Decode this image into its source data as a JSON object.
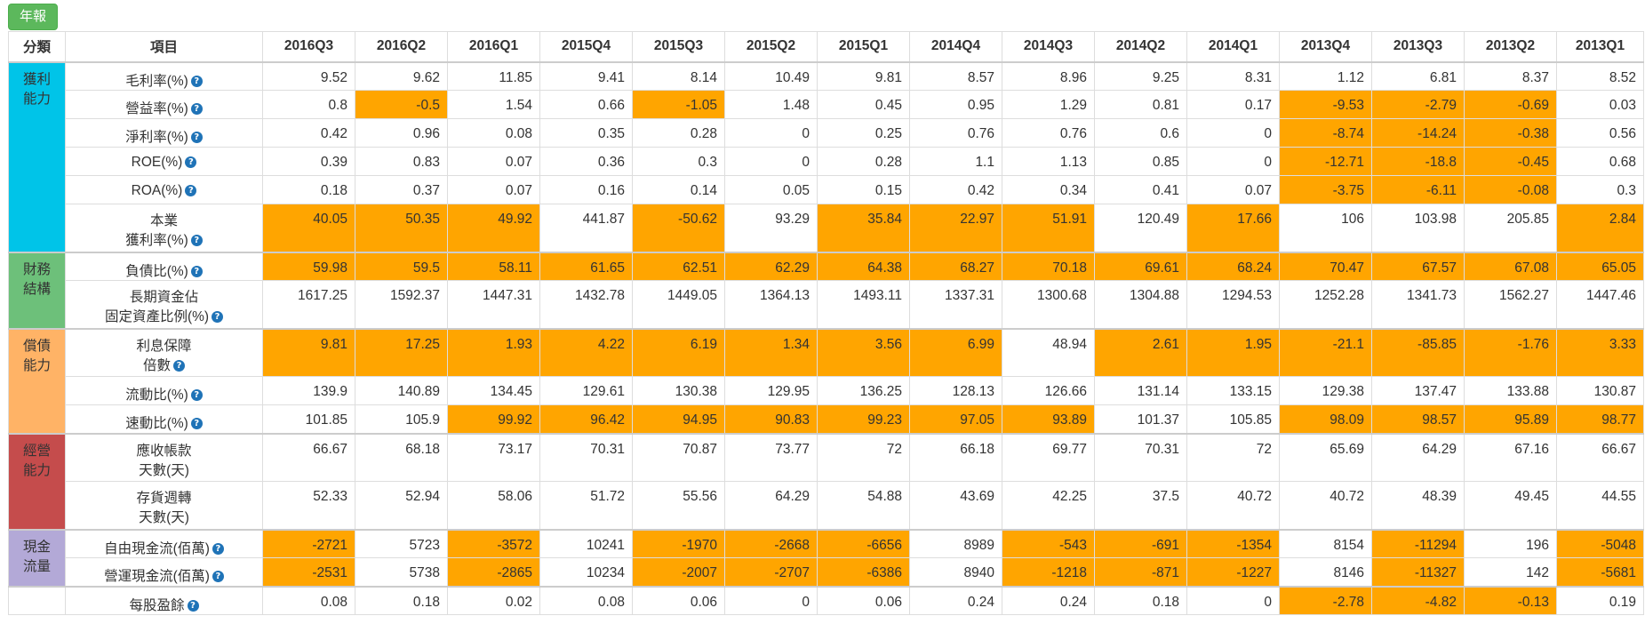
{
  "toolbar": {
    "annual_label": "年報"
  },
  "header": {
    "category_label": "分類",
    "item_label": "項目",
    "quarters": [
      "2016Q3",
      "2016Q2",
      "2016Q1",
      "2015Q4",
      "2015Q3",
      "2015Q2",
      "2015Q1",
      "2014Q4",
      "2014Q3",
      "2014Q2",
      "2014Q1",
      "2013Q4",
      "2013Q3",
      "2013Q2",
      "2013Q1"
    ]
  },
  "colors": {
    "highlight": "#ffa500",
    "cat_profit": "#00c4e8",
    "cat_finance": "#6dc07a",
    "cat_debt": "#ffb366",
    "cat_operation": "#c54c4c",
    "cat_cash": "#b3a9d7",
    "button": "#5cb85c"
  },
  "categories": [
    {
      "name": "獲利能力",
      "lines": [
        "獲利",
        "能力"
      ],
      "color": "#00c4e8",
      "rows": 6
    },
    {
      "name": "財務結構",
      "lines": [
        "財務",
        "結構"
      ],
      "color": "#6dc07a",
      "rows": 2
    },
    {
      "name": "償債能力",
      "lines": [
        "償債",
        "能力"
      ],
      "color": "#ffb366",
      "rows": 3
    },
    {
      "name": "經營能力",
      "lines": [
        "經營",
        "能力"
      ],
      "color": "#c54c4c",
      "rows": 2
    },
    {
      "name": "現金流量",
      "lines": [
        "現金",
        "流量"
      ],
      "color": "#b3a9d7",
      "rows": 2
    },
    {
      "name": "",
      "lines": [
        "",
        ""
      ],
      "color": "#ffffff",
      "rows": 1
    }
  ],
  "rows": [
    {
      "label": [
        "毛利率(%)"
      ],
      "help": true,
      "values": [
        "9.52",
        "9.62",
        "11.85",
        "9.41",
        "8.14",
        "10.49",
        "9.81",
        "8.57",
        "8.96",
        "9.25",
        "8.31",
        "1.12",
        "6.81",
        "8.37",
        "8.52"
      ],
      "highlight": []
    },
    {
      "label": [
        "營益率(%)"
      ],
      "help": true,
      "values": [
        "0.8",
        "-0.5",
        "1.54",
        "0.66",
        "-1.05",
        "1.48",
        "0.45",
        "0.95",
        "1.29",
        "0.81",
        "0.17",
        "-9.53",
        "-2.79",
        "-0.69",
        "0.03"
      ],
      "highlight": [
        1,
        4,
        11,
        12,
        13
      ]
    },
    {
      "label": [
        "淨利率(%)"
      ],
      "help": true,
      "values": [
        "0.42",
        "0.96",
        "0.08",
        "0.35",
        "0.28",
        "0",
        "0.25",
        "0.76",
        "0.76",
        "0.6",
        "0",
        "-8.74",
        "-14.24",
        "-0.38",
        "0.56"
      ],
      "highlight": [
        11,
        12,
        13
      ]
    },
    {
      "label": [
        "ROE(%)"
      ],
      "help": true,
      "values": [
        "0.39",
        "0.83",
        "0.07",
        "0.36",
        "0.3",
        "0",
        "0.28",
        "1.1",
        "1.13",
        "0.85",
        "0",
        "-12.71",
        "-18.8",
        "-0.45",
        "0.68"
      ],
      "highlight": [
        11,
        12,
        13
      ]
    },
    {
      "label": [
        "ROA(%)"
      ],
      "help": true,
      "values": [
        "0.18",
        "0.37",
        "0.07",
        "0.16",
        "0.14",
        "0.05",
        "0.15",
        "0.42",
        "0.34",
        "0.41",
        "0.07",
        "-3.75",
        "-6.11",
        "-0.08",
        "0.3"
      ],
      "highlight": [
        11,
        12,
        13
      ]
    },
    {
      "label": [
        "本業",
        "獲利率(%)"
      ],
      "help": true,
      "values": [
        "40.05",
        "50.35",
        "49.92",
        "441.87",
        "-50.62",
        "93.29",
        "35.84",
        "22.97",
        "51.91",
        "120.49",
        "17.66",
        "106",
        "103.98",
        "205.85",
        "2.84"
      ],
      "highlight": [
        0,
        1,
        2,
        4,
        6,
        7,
        8,
        10,
        14
      ]
    },
    {
      "label": [
        "負債比(%)"
      ],
      "help": true,
      "values": [
        "59.98",
        "59.5",
        "58.11",
        "61.65",
        "62.51",
        "62.29",
        "64.38",
        "68.27",
        "70.18",
        "69.61",
        "68.24",
        "70.47",
        "67.57",
        "67.08",
        "65.05"
      ],
      "highlight": [
        0,
        1,
        2,
        3,
        4,
        5,
        6,
        7,
        8,
        9,
        10,
        11,
        12,
        13,
        14
      ]
    },
    {
      "label": [
        "長期資金佔",
        "固定資產比例(%)"
      ],
      "help": true,
      "values": [
        "1617.25",
        "1592.37",
        "1447.31",
        "1432.78",
        "1449.05",
        "1364.13",
        "1493.11",
        "1337.31",
        "1300.68",
        "1304.88",
        "1294.53",
        "1252.28",
        "1341.73",
        "1562.27",
        "1447.46"
      ],
      "highlight": []
    },
    {
      "label": [
        "利息保障",
        "倍數"
      ],
      "help": true,
      "values": [
        "9.81",
        "17.25",
        "1.93",
        "4.22",
        "6.19",
        "1.34",
        "3.56",
        "6.99",
        "48.94",
        "2.61",
        "1.95",
        "-21.1",
        "-85.85",
        "-1.76",
        "3.33"
      ],
      "highlight": [
        0,
        1,
        2,
        3,
        4,
        5,
        6,
        7,
        9,
        10,
        11,
        12,
        13,
        14
      ]
    },
    {
      "label": [
        "流動比(%)"
      ],
      "help": true,
      "values": [
        "139.9",
        "140.89",
        "134.45",
        "129.61",
        "130.38",
        "129.95",
        "136.25",
        "128.13",
        "126.66",
        "131.14",
        "133.15",
        "129.38",
        "137.47",
        "133.88",
        "130.87"
      ],
      "highlight": []
    },
    {
      "label": [
        "速動比(%)"
      ],
      "help": true,
      "values": [
        "101.85",
        "105.9",
        "99.92",
        "96.42",
        "94.95",
        "90.83",
        "99.23",
        "97.05",
        "93.89",
        "101.37",
        "105.85",
        "98.09",
        "98.57",
        "95.89",
        "98.77"
      ],
      "highlight": [
        2,
        3,
        4,
        5,
        6,
        7,
        8,
        11,
        12,
        13,
        14
      ]
    },
    {
      "label": [
        "應收帳款",
        "天數(天)"
      ],
      "help": false,
      "values": [
        "66.67",
        "68.18",
        "73.17",
        "70.31",
        "70.87",
        "73.77",
        "72",
        "66.18",
        "69.77",
        "70.31",
        "72",
        "65.69",
        "64.29",
        "67.16",
        "66.67"
      ],
      "highlight": []
    },
    {
      "label": [
        "存貨週轉",
        "天數(天)"
      ],
      "help": false,
      "values": [
        "52.33",
        "52.94",
        "58.06",
        "51.72",
        "55.56",
        "64.29",
        "54.88",
        "43.69",
        "42.25",
        "37.5",
        "40.72",
        "40.72",
        "48.39",
        "49.45",
        "44.55"
      ],
      "highlight": []
    },
    {
      "label": [
        "自由現金流(佰萬)"
      ],
      "help": true,
      "values": [
        "-2721",
        "5723",
        "-3572",
        "10241",
        "-1970",
        "-2668",
        "-6656",
        "8989",
        "-543",
        "-691",
        "-1354",
        "8154",
        "-11294",
        "196",
        "-5048"
      ],
      "highlight": [
        0,
        2,
        4,
        5,
        6,
        8,
        9,
        10,
        12,
        14
      ]
    },
    {
      "label": [
        "營運現金流(佰萬)"
      ],
      "help": true,
      "values": [
        "-2531",
        "5738",
        "-2865",
        "10234",
        "-2007",
        "-2707",
        "-6386",
        "8940",
        "-1218",
        "-871",
        "-1227",
        "8146",
        "-11327",
        "142",
        "-5681"
      ],
      "highlight": [
        0,
        2,
        4,
        5,
        6,
        8,
        9,
        10,
        12,
        14
      ]
    },
    {
      "label": [
        "每股盈餘"
      ],
      "help": true,
      "values": [
        "0.08",
        "0.18",
        "0.02",
        "0.08",
        "0.06",
        "0",
        "0.06",
        "0.24",
        "0.24",
        "0.18",
        "0",
        "-2.78",
        "-4.82",
        "-0.13",
        "0.19"
      ],
      "highlight": [
        11,
        12,
        13
      ]
    }
  ]
}
